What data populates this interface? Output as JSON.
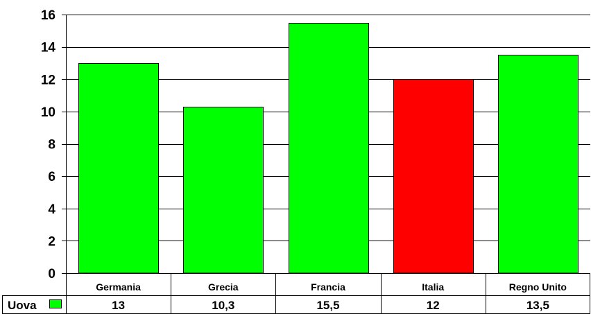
{
  "chart_data": {
    "type": "bar",
    "categories": [
      "Germania",
      "Grecia",
      "Francia",
      "Italia",
      "Regno Unito"
    ],
    "series": [
      {
        "name": "Uova",
        "values": [
          13,
          10.3,
          15.5,
          12,
          13.5
        ],
        "value_labels": [
          "13",
          "10,3",
          "15,5",
          "12",
          "13,5"
        ],
        "color": "#00FF00"
      }
    ],
    "highlight": {
      "category": "Italia",
      "color": "#FF0000"
    },
    "title": "",
    "xlabel": "",
    "ylabel": "",
    "ylim": [
      0,
      16
    ],
    "yticks": [
      0,
      2,
      4,
      6,
      8,
      10,
      12,
      14,
      16
    ],
    "grid": true,
    "legend": "data-table-left",
    "data_table": true
  }
}
